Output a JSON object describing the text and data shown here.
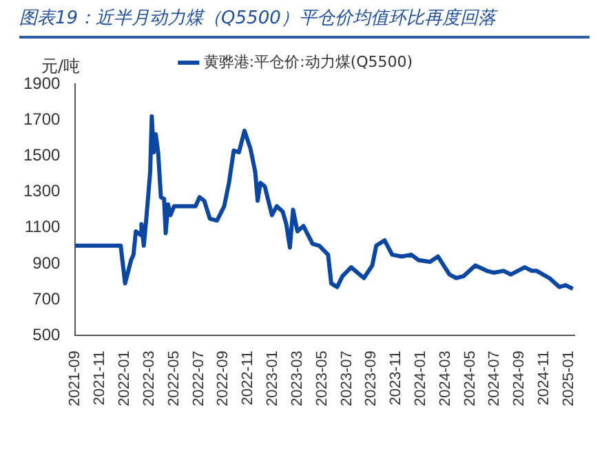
{
  "chart_data": {
    "type": "line",
    "title": "图表19：近半月动力煤（Q5500）平仓价均值环比再度回落",
    "ylabel": "元/吨",
    "legend": "top",
    "marker": "none",
    "line_style": "solid",
    "grid": false,
    "ylim": [
      500,
      1900
    ],
    "yticks": [
      500,
      700,
      900,
      1100,
      1300,
      1500,
      1700,
      1900
    ],
    "xlim": [
      "2021-09-01",
      "2025-01-15"
    ],
    "xticks": [
      "2021-09",
      "2021-11",
      "2022-01",
      "2022-03",
      "2022-05",
      "2022-07",
      "2022-09",
      "2022-11",
      "2023-01",
      "2023-03",
      "2023-05",
      "2023-07",
      "2023-09",
      "2023-11",
      "2024-01",
      "2024-03",
      "2024-05",
      "2024-07",
      "2024-09",
      "2024-11",
      "2025-01"
    ],
    "x": [
      "2021-09-01",
      "2021-12-22",
      "2022-01-02",
      "2022-01-17",
      "2022-01-23",
      "2022-01-29",
      "2022-02-10",
      "2022-02-12",
      "2022-02-18",
      "2022-02-25",
      "2022-03-03",
      "2022-03-07",
      "2022-03-12",
      "2022-03-17",
      "2022-03-23",
      "2022-03-30",
      "2022-04-07",
      "2022-04-11",
      "2022-04-17",
      "2022-04-23",
      "2022-05-01",
      "2022-06-24",
      "2022-07-03",
      "2022-07-15",
      "2022-07-29",
      "2022-08-16",
      "2022-09-03",
      "2022-09-15",
      "2022-09-27",
      "2022-10-09",
      "2022-10-23",
      "2022-11-07",
      "2022-11-19",
      "2022-11-25",
      "2022-12-01",
      "2022-12-12",
      "2022-12-30",
      "2023-01-11",
      "2023-01-26",
      "2023-02-04",
      "2023-02-13",
      "2023-02-21",
      "2023-03-01",
      "2023-03-16",
      "2023-04-08",
      "2023-04-25",
      "2023-05-16",
      "2023-05-24",
      "2023-06-08",
      "2023-06-21",
      "2023-07-12",
      "2023-08-02",
      "2023-08-13",
      "2023-09-03",
      "2023-09-13",
      "2023-10-03",
      "2023-10-22",
      "2023-11-15",
      "2023-12-08",
      "2023-12-26",
      "2024-01-24",
      "2024-02-13",
      "2024-03-11",
      "2024-03-28",
      "2024-04-15",
      "2024-05-14",
      "2024-06-12",
      "2024-06-29",
      "2024-07-23",
      "2024-08-10",
      "2024-09-14",
      "2024-10-01",
      "2024-10-13",
      "2024-11-14",
      "2024-12-08",
      "2024-12-24",
      "2025-01-11"
    ],
    "series": [
      {
        "name": "黄骅港:平仓价:动力煤(Q5500)",
        "color": "#0b47a1",
        "values": [
          1000,
          1000,
          790,
          920,
          950,
          1080,
          1060,
          1120,
          1000,
          1170,
          1410,
          1720,
          1520,
          1620,
          1520,
          1270,
          1260,
          1070,
          1230,
          1170,
          1220,
          1220,
          1270,
          1250,
          1150,
          1140,
          1220,
          1350,
          1530,
          1520,
          1640,
          1540,
          1410,
          1250,
          1350,
          1330,
          1170,
          1220,
          1190,
          1120,
          990,
          1200,
          1080,
          1110,
          1010,
          1000,
          950,
          790,
          770,
          830,
          880,
          840,
          820,
          890,
          1000,
          1030,
          950,
          940,
          950,
          920,
          910,
          940,
          840,
          820,
          830,
          890,
          860,
          850,
          860,
          840,
          880,
          860,
          860,
          820,
          770,
          780,
          760
        ]
      }
    ]
  }
}
